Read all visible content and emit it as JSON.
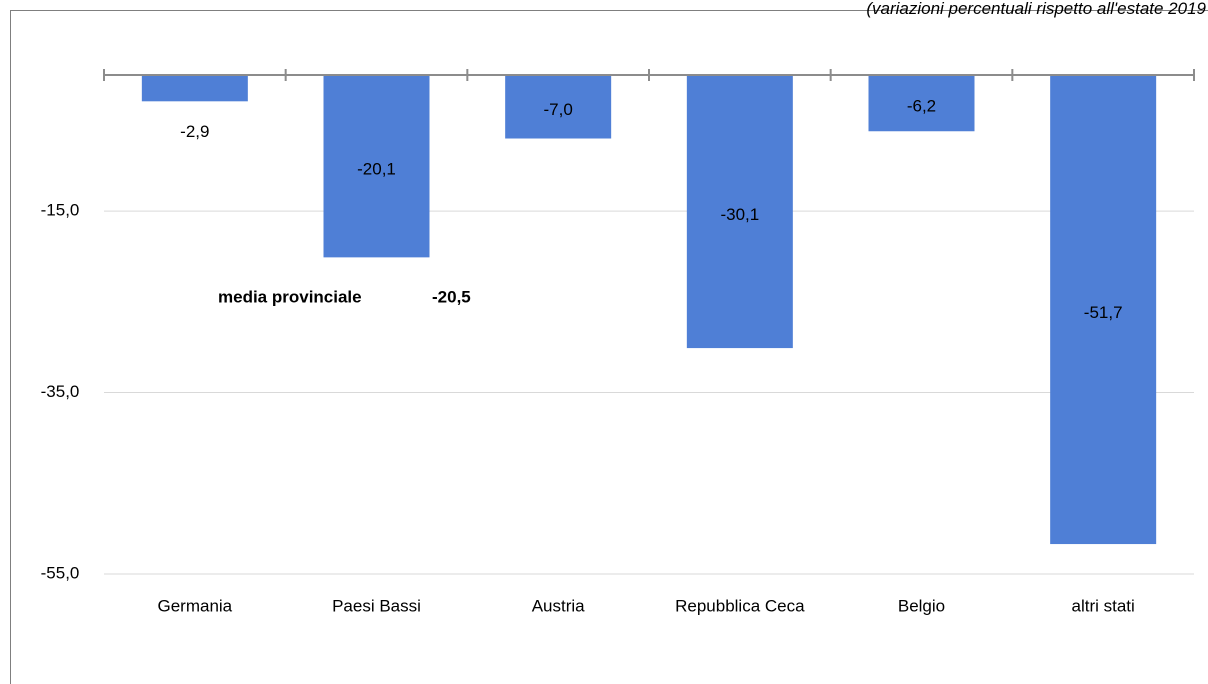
{
  "chart_data": {
    "type": "bar",
    "subtitle": "(variazioni percentuali rispetto all'estate 2019",
    "categories": [
      "Germania",
      "Paesi Bassi",
      "Austria",
      "Repubblica Ceca",
      "Belgio",
      "altri stati"
    ],
    "values": [
      -2.9,
      -20.1,
      -7.0,
      -30.1,
      -6.2,
      -51.7
    ],
    "value_labels": [
      "-2,9",
      "-20,1",
      "-7,0",
      "-30,1",
      "-6,2",
      "-51,7"
    ],
    "color": "#4f7fd6",
    "ylim": [
      -55,
      0
    ],
    "yticks": [
      {
        "value": -15,
        "label": "-15,0"
      },
      {
        "value": -35,
        "label": "-35,0"
      },
      {
        "value": -55,
        "label": "-55,0"
      }
    ],
    "grid": true,
    "reference_line": {
      "value": -20.5,
      "label": "media provinciale",
      "value_label": "-20,5",
      "color": "#c00000"
    }
  }
}
